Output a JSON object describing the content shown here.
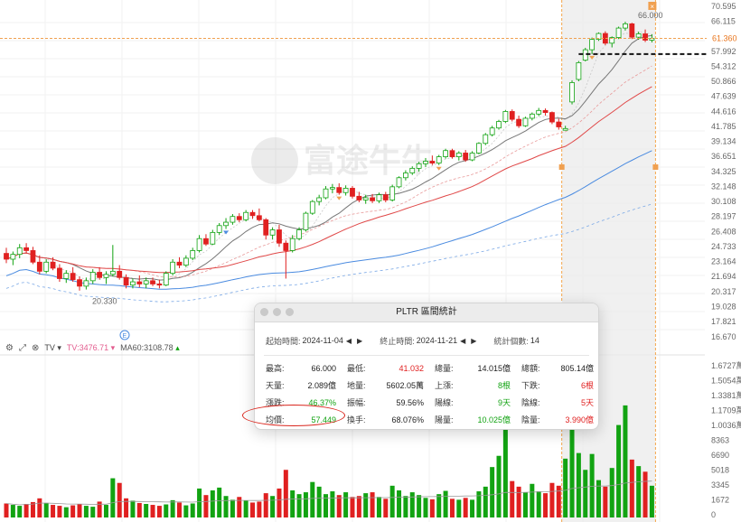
{
  "price_axis": {
    "labels": [
      "70.595",
      "66.115",
      "61.360",
      "57.992",
      "54.312",
      "50.866",
      "47.639",
      "44.616",
      "41.785",
      "39.134",
      "36.651",
      "34.325",
      "32.148",
      "30.108",
      "28.197",
      "26.408",
      "24.733",
      "23.164",
      "21.694",
      "20.317",
      "19.028",
      "17.821",
      "16.670"
    ],
    "current_price": "61.360",
    "high_mark": "66.000",
    "low_mark": "20.330"
  },
  "volume_axis": {
    "labels": [
      "1.6727萬",
      "1.5054萬",
      "1.3381萬",
      "1.1709萬",
      "1.0036萬",
      "8363",
      "6690",
      "5018",
      "3345",
      "1672",
      "0"
    ]
  },
  "watermark": "富途牛牛",
  "indicator_bar": {
    "settings_icon": "gear-icon",
    "expand_icon": "expand-icon",
    "close_icon": "close-icon",
    "indicator_name": "TV",
    "tv_value": "TV:3476.71",
    "ma60_value": "MA60:3108.78"
  },
  "event_markers": [
    "E",
    "E"
  ],
  "stats_panel": {
    "title": "PLTR 區間統計",
    "start_label": "起始時間:",
    "start_value": "2024-11-04",
    "end_label": "終止時間:",
    "end_value": "2024-11-21",
    "count_label": "統計個數:",
    "count_value": "14",
    "rows": [
      [
        {
          "k": "最高:",
          "v": "66.000",
          "c": "neutral"
        },
        {
          "k": "最低:",
          "v": "41.032",
          "c": "red"
        },
        {
          "k": "總量:",
          "v": "14.015億",
          "c": "neutral"
        },
        {
          "k": "總額:",
          "v": "805.14億",
          "c": "neutral"
        }
      ],
      [
        {
          "k": "天量:",
          "v": "2.089億",
          "c": "neutral"
        },
        {
          "k": "地量:",
          "v": "5602.05萬",
          "c": "neutral"
        },
        {
          "k": "上漲:",
          "v": "8根",
          "c": "green"
        },
        {
          "k": "下跌:",
          "v": "6根",
          "c": "red"
        }
      ],
      [
        {
          "k": "漲跌:",
          "v": "46.37%",
          "c": "green"
        },
        {
          "k": "振幅:",
          "v": "59.56%",
          "c": "neutral"
        },
        {
          "k": "陽線:",
          "v": "9天",
          "c": "green"
        },
        {
          "k": "陰線:",
          "v": "5天",
          "c": "red"
        }
      ],
      [
        {
          "k": "均價:",
          "v": "57.449",
          "c": "green"
        },
        {
          "k": "換手:",
          "v": "68.076%",
          "c": "neutral"
        },
        {
          "k": "陽量:",
          "v": "10.025億",
          "c": "green"
        },
        {
          "k": "陰量:",
          "v": "3.990億",
          "c": "red"
        }
      ]
    ]
  },
  "chart_data": {
    "type": "candlestick",
    "ticker": "PLTR",
    "price_axis_range": [
      16.67,
      70.595
    ],
    "scale": "log",
    "selected_range": {
      "start": "2024-11-04",
      "end": "2024-11-21"
    },
    "up_color": "#12a312",
    "down_color": "#e02020",
    "candles": [
      {
        "o": 24.0,
        "h": 24.6,
        "l": 23.0,
        "c": 23.4
      },
      {
        "o": 23.4,
        "h": 24.2,
        "l": 22.8,
        "c": 23.9
      },
      {
        "o": 23.9,
        "h": 25.0,
        "l": 23.5,
        "c": 24.6
      },
      {
        "o": 24.6,
        "h": 25.1,
        "l": 24.0,
        "c": 24.3
      },
      {
        "o": 24.3,
        "h": 24.7,
        "l": 22.9,
        "c": 23.1
      },
      {
        "o": 23.1,
        "h": 23.8,
        "l": 21.9,
        "c": 22.2
      },
      {
        "o": 22.2,
        "h": 23.4,
        "l": 22.0,
        "c": 23.1
      },
      {
        "o": 23.1,
        "h": 23.6,
        "l": 22.3,
        "c": 22.5
      },
      {
        "o": 22.5,
        "h": 22.9,
        "l": 21.2,
        "c": 21.5
      },
      {
        "o": 21.5,
        "h": 22.3,
        "l": 21.1,
        "c": 22.0
      },
      {
        "o": 22.0,
        "h": 22.6,
        "l": 21.2,
        "c": 21.4
      },
      {
        "o": 21.4,
        "h": 21.7,
        "l": 20.4,
        "c": 20.8
      },
      {
        "o": 20.8,
        "h": 21.6,
        "l": 20.5,
        "c": 21.3
      },
      {
        "o": 21.3,
        "h": 22.4,
        "l": 21.0,
        "c": 22.1
      },
      {
        "o": 22.1,
        "h": 22.6,
        "l": 21.4,
        "c": 21.6
      },
      {
        "o": 21.6,
        "h": 22.2,
        "l": 21.0,
        "c": 21.9
      },
      {
        "o": 21.9,
        "h": 24.9,
        "l": 21.7,
        "c": 22.2
      },
      {
        "o": 22.2,
        "h": 22.8,
        "l": 21.4,
        "c": 21.6
      },
      {
        "o": 21.6,
        "h": 21.9,
        "l": 20.6,
        "c": 20.9
      },
      {
        "o": 20.9,
        "h": 21.5,
        "l": 20.6,
        "c": 21.2
      },
      {
        "o": 21.2,
        "h": 21.8,
        "l": 20.7,
        "c": 21.0
      },
      {
        "o": 21.0,
        "h": 21.6,
        "l": 20.6,
        "c": 21.3
      },
      {
        "o": 21.3,
        "h": 21.6,
        "l": 20.8,
        "c": 21.0
      },
      {
        "o": 21.0,
        "h": 21.4,
        "l": 20.6,
        "c": 20.9
      },
      {
        "o": 20.9,
        "h": 22.2,
        "l": 20.8,
        "c": 22.0
      },
      {
        "o": 22.0,
        "h": 23.4,
        "l": 21.8,
        "c": 23.1
      },
      {
        "o": 23.1,
        "h": 23.6,
        "l": 22.5,
        "c": 22.8
      },
      {
        "o": 22.8,
        "h": 23.8,
        "l": 22.6,
        "c": 23.5
      },
      {
        "o": 23.5,
        "h": 24.6,
        "l": 23.3,
        "c": 24.3
      },
      {
        "o": 24.3,
        "h": 26.0,
        "l": 24.1,
        "c": 25.6
      },
      {
        "o": 25.6,
        "h": 26.1,
        "l": 24.8,
        "c": 25.0
      },
      {
        "o": 25.0,
        "h": 26.6,
        "l": 24.9,
        "c": 26.3
      },
      {
        "o": 26.3,
        "h": 27.4,
        "l": 26.0,
        "c": 27.1
      },
      {
        "o": 27.1,
        "h": 28.0,
        "l": 26.7,
        "c": 27.5
      },
      {
        "o": 27.5,
        "h": 28.5,
        "l": 27.2,
        "c": 28.2
      },
      {
        "o": 28.2,
        "h": 28.6,
        "l": 27.5,
        "c": 27.8
      },
      {
        "o": 27.8,
        "h": 29.0,
        "l": 27.6,
        "c": 28.7
      },
      {
        "o": 28.7,
        "h": 29.0,
        "l": 27.9,
        "c": 28.3
      },
      {
        "o": 28.3,
        "h": 29.2,
        "l": 27.6,
        "c": 27.8
      },
      {
        "o": 27.8,
        "h": 28.0,
        "l": 25.5,
        "c": 26.0
      },
      {
        "o": 26.0,
        "h": 26.9,
        "l": 25.5,
        "c": 26.6
      },
      {
        "o": 26.6,
        "h": 27.2,
        "l": 24.7,
        "c": 25.1
      },
      {
        "o": 25.1,
        "h": 25.4,
        "l": 21.5,
        "c": 24.3
      },
      {
        "o": 24.3,
        "h": 26.0,
        "l": 24.1,
        "c": 25.6
      },
      {
        "o": 25.6,
        "h": 26.9,
        "l": 25.4,
        "c": 26.6
      },
      {
        "o": 26.6,
        "h": 28.8,
        "l": 26.4,
        "c": 28.6
      },
      {
        "o": 28.6,
        "h": 30.3,
        "l": 28.4,
        "c": 30.1
      },
      {
        "o": 30.1,
        "h": 31.0,
        "l": 29.6,
        "c": 30.6
      },
      {
        "o": 30.6,
        "h": 32.2,
        "l": 30.4,
        "c": 31.8
      },
      {
        "o": 31.8,
        "h": 32.5,
        "l": 31.2,
        "c": 32.0
      },
      {
        "o": 32.0,
        "h": 32.6,
        "l": 31.0,
        "c": 31.3
      },
      {
        "o": 31.3,
        "h": 32.3,
        "l": 30.9,
        "c": 31.9
      },
      {
        "o": 31.9,
        "h": 32.2,
        "l": 30.5,
        "c": 30.8
      },
      {
        "o": 30.8,
        "h": 31.4,
        "l": 30.0,
        "c": 30.3
      },
      {
        "o": 30.3,
        "h": 31.0,
        "l": 29.8,
        "c": 30.6
      },
      {
        "o": 30.6,
        "h": 31.1,
        "l": 29.9,
        "c": 30.2
      },
      {
        "o": 30.2,
        "h": 31.3,
        "l": 29.9,
        "c": 31.0
      },
      {
        "o": 31.0,
        "h": 31.4,
        "l": 30.0,
        "c": 30.3
      },
      {
        "o": 30.3,
        "h": 32.4,
        "l": 30.1,
        "c": 32.1
      },
      {
        "o": 32.1,
        "h": 33.6,
        "l": 31.9,
        "c": 33.4
      },
      {
        "o": 33.4,
        "h": 34.5,
        "l": 33.0,
        "c": 34.1
      },
      {
        "o": 34.1,
        "h": 35.1,
        "l": 33.8,
        "c": 34.8
      },
      {
        "o": 34.8,
        "h": 35.8,
        "l": 34.3,
        "c": 35.5
      },
      {
        "o": 35.5,
        "h": 36.4,
        "l": 35.0,
        "c": 35.9
      },
      {
        "o": 35.9,
        "h": 36.8,
        "l": 35.3,
        "c": 35.6
      },
      {
        "o": 35.6,
        "h": 36.9,
        "l": 35.3,
        "c": 36.6
      },
      {
        "o": 36.6,
        "h": 37.9,
        "l": 36.3,
        "c": 37.6
      },
      {
        "o": 37.6,
        "h": 37.9,
        "l": 36.3,
        "c": 36.6
      },
      {
        "o": 36.6,
        "h": 37.5,
        "l": 36.0,
        "c": 37.2
      },
      {
        "o": 37.2,
        "h": 37.7,
        "l": 35.8,
        "c": 36.1
      },
      {
        "o": 36.1,
        "h": 37.5,
        "l": 35.9,
        "c": 37.2
      },
      {
        "o": 37.2,
        "h": 39.0,
        "l": 37.0,
        "c": 38.8
      },
      {
        "o": 38.8,
        "h": 40.6,
        "l": 38.5,
        "c": 40.3
      },
      {
        "o": 40.3,
        "h": 41.9,
        "l": 40.0,
        "c": 41.5
      },
      {
        "o": 41.5,
        "h": 43.0,
        "l": 41.2,
        "c": 42.7
      },
      {
        "o": 42.7,
        "h": 44.9,
        "l": 42.4,
        "c": 44.6
      },
      {
        "o": 44.6,
        "h": 45.0,
        "l": 42.7,
        "c": 43.1
      },
      {
        "o": 43.1,
        "h": 43.8,
        "l": 41.5,
        "c": 41.9
      },
      {
        "o": 41.9,
        "h": 43.6,
        "l": 41.7,
        "c": 43.3
      },
      {
        "o": 43.3,
        "h": 44.4,
        "l": 42.9,
        "c": 44.1
      },
      {
        "o": 44.1,
        "h": 45.3,
        "l": 43.7,
        "c": 44.8
      },
      {
        "o": 44.8,
        "h": 45.2,
        "l": 43.8,
        "c": 44.4
      },
      {
        "o": 44.4,
        "h": 44.6,
        "l": 42.2,
        "c": 42.6
      },
      {
        "o": 42.6,
        "h": 43.2,
        "l": 41.2,
        "c": 41.7
      },
      {
        "o": 41.1,
        "h": 41.9,
        "l": 41.03,
        "c": 41.4
      },
      {
        "o": 46.5,
        "h": 51.1,
        "l": 46.0,
        "c": 50.6
      },
      {
        "o": 51.3,
        "h": 55.6,
        "l": 50.9,
        "c": 55.2
      },
      {
        "o": 55.8,
        "h": 58.9,
        "l": 55.5,
        "c": 58.4
      },
      {
        "o": 58.4,
        "h": 61.6,
        "l": 57.3,
        "c": 61.1
      },
      {
        "o": 61.1,
        "h": 63.0,
        "l": 60.7,
        "c": 62.7
      },
      {
        "o": 62.7,
        "h": 63.3,
        "l": 59.6,
        "c": 60.1
      },
      {
        "o": 60.1,
        "h": 61.9,
        "l": 59.0,
        "c": 61.6
      },
      {
        "o": 61.6,
        "h": 64.6,
        "l": 61.2,
        "c": 64.2
      },
      {
        "o": 64.2,
        "h": 66.0,
        "l": 63.5,
        "c": 65.4
      },
      {
        "o": 65.4,
        "h": 65.7,
        "l": 61.2,
        "c": 61.7
      },
      {
        "o": 61.7,
        "h": 63.2,
        "l": 61.0,
        "c": 62.6
      },
      {
        "o": 62.6,
        "h": 63.8,
        "l": 60.4,
        "c": 60.9
      },
      {
        "o": 60.9,
        "h": 62.5,
        "l": 60.3,
        "c": 61.36
      }
    ],
    "volumes": [
      1500,
      1350,
      1250,
      1450,
      1650,
      2050,
      1550,
      1350,
      1250,
      1100,
      1300,
      1450,
      1250,
      1150,
      1700,
      1350,
      4200,
      3700,
      2050,
      1800,
      1550,
      1450,
      1350,
      1250,
      1400,
      1850,
      1600,
      1300,
      1500,
      3100,
      2400,
      2900,
      3200,
      2300,
      1900,
      2200,
      1800,
      1600,
      1700,
      2600,
      2300,
      3100,
      5100,
      2900,
      2500,
      2700,
      3800,
      3300,
      2500,
      2800,
      2400,
      2700,
      2200,
      2300,
      2600,
      2700,
      2200,
      2000,
      3400,
      2900,
      2300,
      2700,
      2400,
      2100,
      1950,
      2500,
      2850,
      2000,
      1900,
      2100,
      1900,
      2800,
      3300,
      5400,
      6600,
      11200,
      3900,
      3300,
      2700,
      3600,
      2800,
      2600,
      3700,
      3400,
      6300,
      13500,
      6900,
      5100,
      6800,
      4000,
      3300,
      5300,
      9900,
      12000,
      6200,
      5500,
      4900,
      3400
    ]
  }
}
